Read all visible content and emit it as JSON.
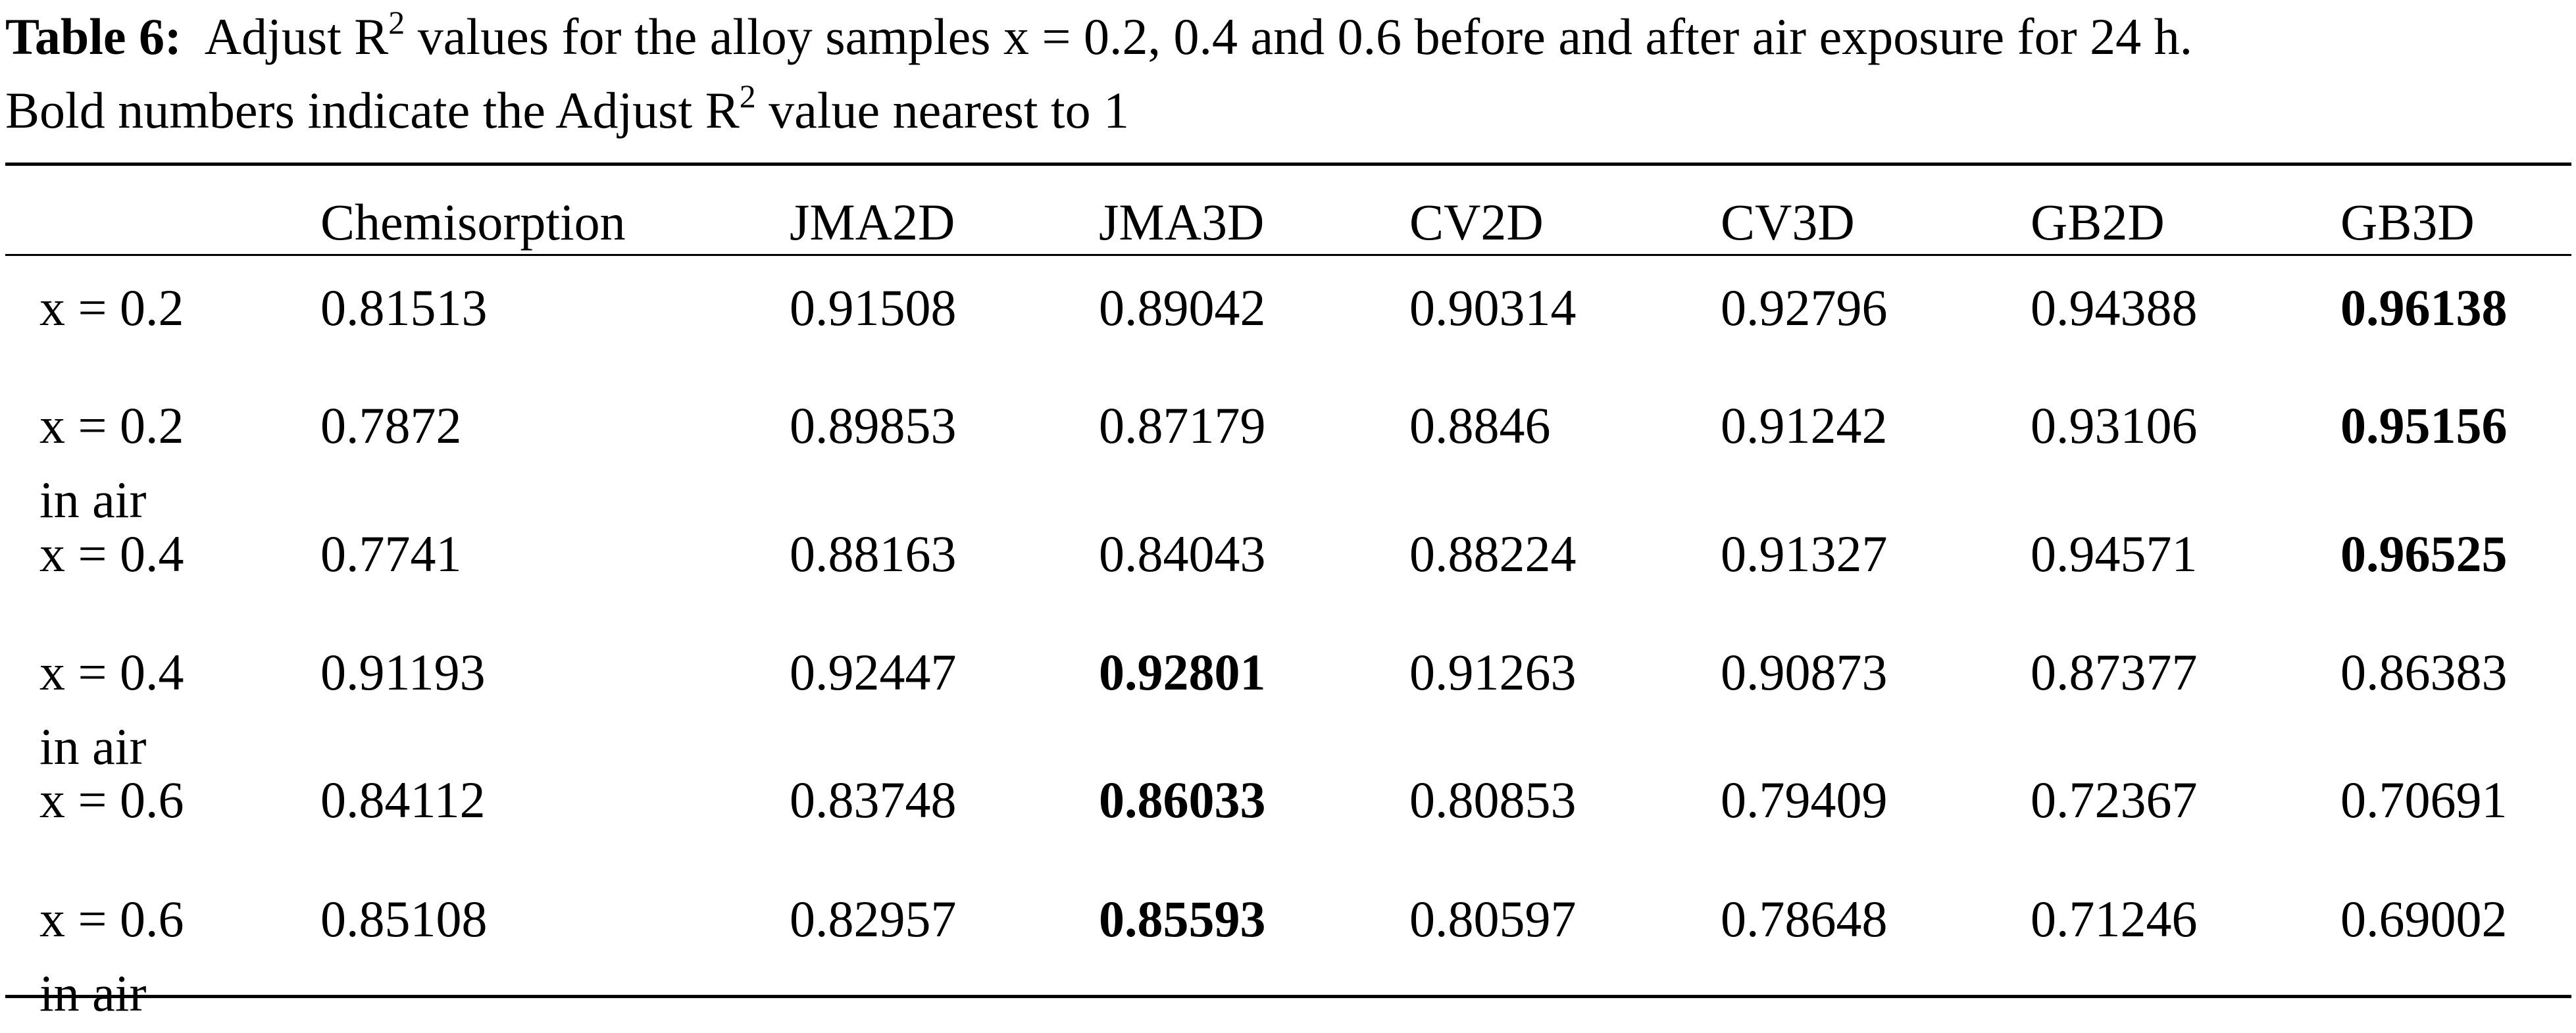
{
  "caption": {
    "label": "Table 6:",
    "line1_before_sup": "Adjust R",
    "sup1": "2",
    "line1_after_sup": " values for the alloy samples x = 0.2, 0.4 and 0.6 before and after air exposure for 24 h.",
    "line2_before_sup": "Bold numbers indicate the Adjust R",
    "sup2": "2",
    "line2_after_sup": " value nearest to 1"
  },
  "table": {
    "columns": [
      "Chemisorption",
      "JMA2D",
      "JMA3D",
      "CV2D",
      "CV3D",
      "GB2D",
      "GB3D"
    ],
    "rows": [
      {
        "label_line1": "x = 0.2",
        "label_line2": "",
        "values": [
          "0.81513",
          "0.91508",
          "0.89042",
          "0.90314",
          "0.92796",
          "0.94388",
          "0.96138"
        ],
        "bold_index": 6
      },
      {
        "label_line1": "x = 0.2",
        "label_line2": "in air",
        "values": [
          "0.7872",
          "0.89853",
          "0.87179",
          "0.8846",
          "0.91242",
          "0.93106",
          "0.95156"
        ],
        "bold_index": 6
      },
      {
        "label_line1": "x = 0.4",
        "label_line2": "",
        "values": [
          "0.7741",
          "0.88163",
          "0.84043",
          "0.88224",
          "0.91327",
          "0.94571",
          "0.96525"
        ],
        "bold_index": 6
      },
      {
        "label_line1": "x = 0.4",
        "label_line2": "in air",
        "values": [
          "0.91193",
          "0.92447",
          "0.92801",
          "0.91263",
          "0.90873",
          "0.87377",
          "0.86383"
        ],
        "bold_index": 2
      },
      {
        "label_line1": "x = 0.6",
        "label_line2": "",
        "values": [
          "0.84112",
          "0.83748",
          "0.86033",
          "0.80853",
          "0.79409",
          "0.72367",
          "0.70691"
        ],
        "bold_index": 2
      },
      {
        "label_line1": "x = 0.6",
        "label_line2": "in air",
        "values": [
          "0.85108",
          "0.82957",
          "0.85593",
          "0.80597",
          "0.78648",
          "0.71246",
          "0.69002"
        ],
        "bold_index": 2
      }
    ]
  }
}
